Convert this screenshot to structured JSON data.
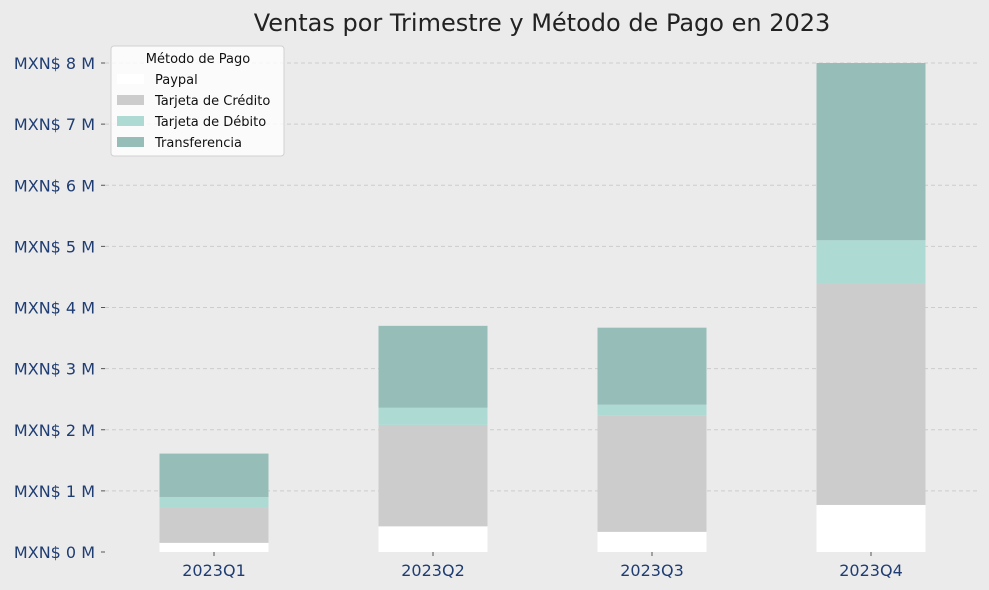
{
  "chart_data": {
    "type": "bar",
    "stacked": true,
    "title": "Ventas por Trimestre y Método de Pago en 2023",
    "xlabel": "",
    "ylabel": "",
    "categories": [
      "2023Q1",
      "2023Q2",
      "2023Q3",
      "2023Q4"
    ],
    "series": [
      {
        "name": "Paypal",
        "color": "#ffffff",
        "values": [
          0.15,
          0.42,
          0.33,
          0.77
        ]
      },
      {
        "name": "Tarjeta de Crédito",
        "color": "#cccccc",
        "values": [
          0.57,
          1.66,
          1.9,
          3.63
        ]
      },
      {
        "name": "Tarjeta de Débito",
        "color": "#addbd4",
        "values": [
          0.18,
          0.28,
          0.18,
          0.7
        ]
      },
      {
        "name": "Transferencia",
        "color": "#96bdb8",
        "values": [
          0.71,
          1.34,
          1.26,
          2.9
        ]
      }
    ],
    "ylim": [
      0,
      8
    ],
    "yticks": [
      0,
      1,
      2,
      3,
      4,
      5,
      6,
      7,
      8
    ],
    "ytick_labels": [
      "MXN$ 0 M",
      "MXN$ 1 M",
      "MXN$ 2 M",
      "MXN$ 3 M",
      "MXN$ 4 M",
      "MXN$ 5 M",
      "MXN$ 6 M",
      "MXN$ 7 M",
      "MXN$ 8 M"
    ],
    "grid": "y",
    "legend": {
      "title": "Método de Pago",
      "placement": "upper-left"
    },
    "colors": {
      "background": "#ebebeb",
      "tick_text": "#1f3d73",
      "grid": "#cccccc",
      "title": "#222222"
    }
  }
}
